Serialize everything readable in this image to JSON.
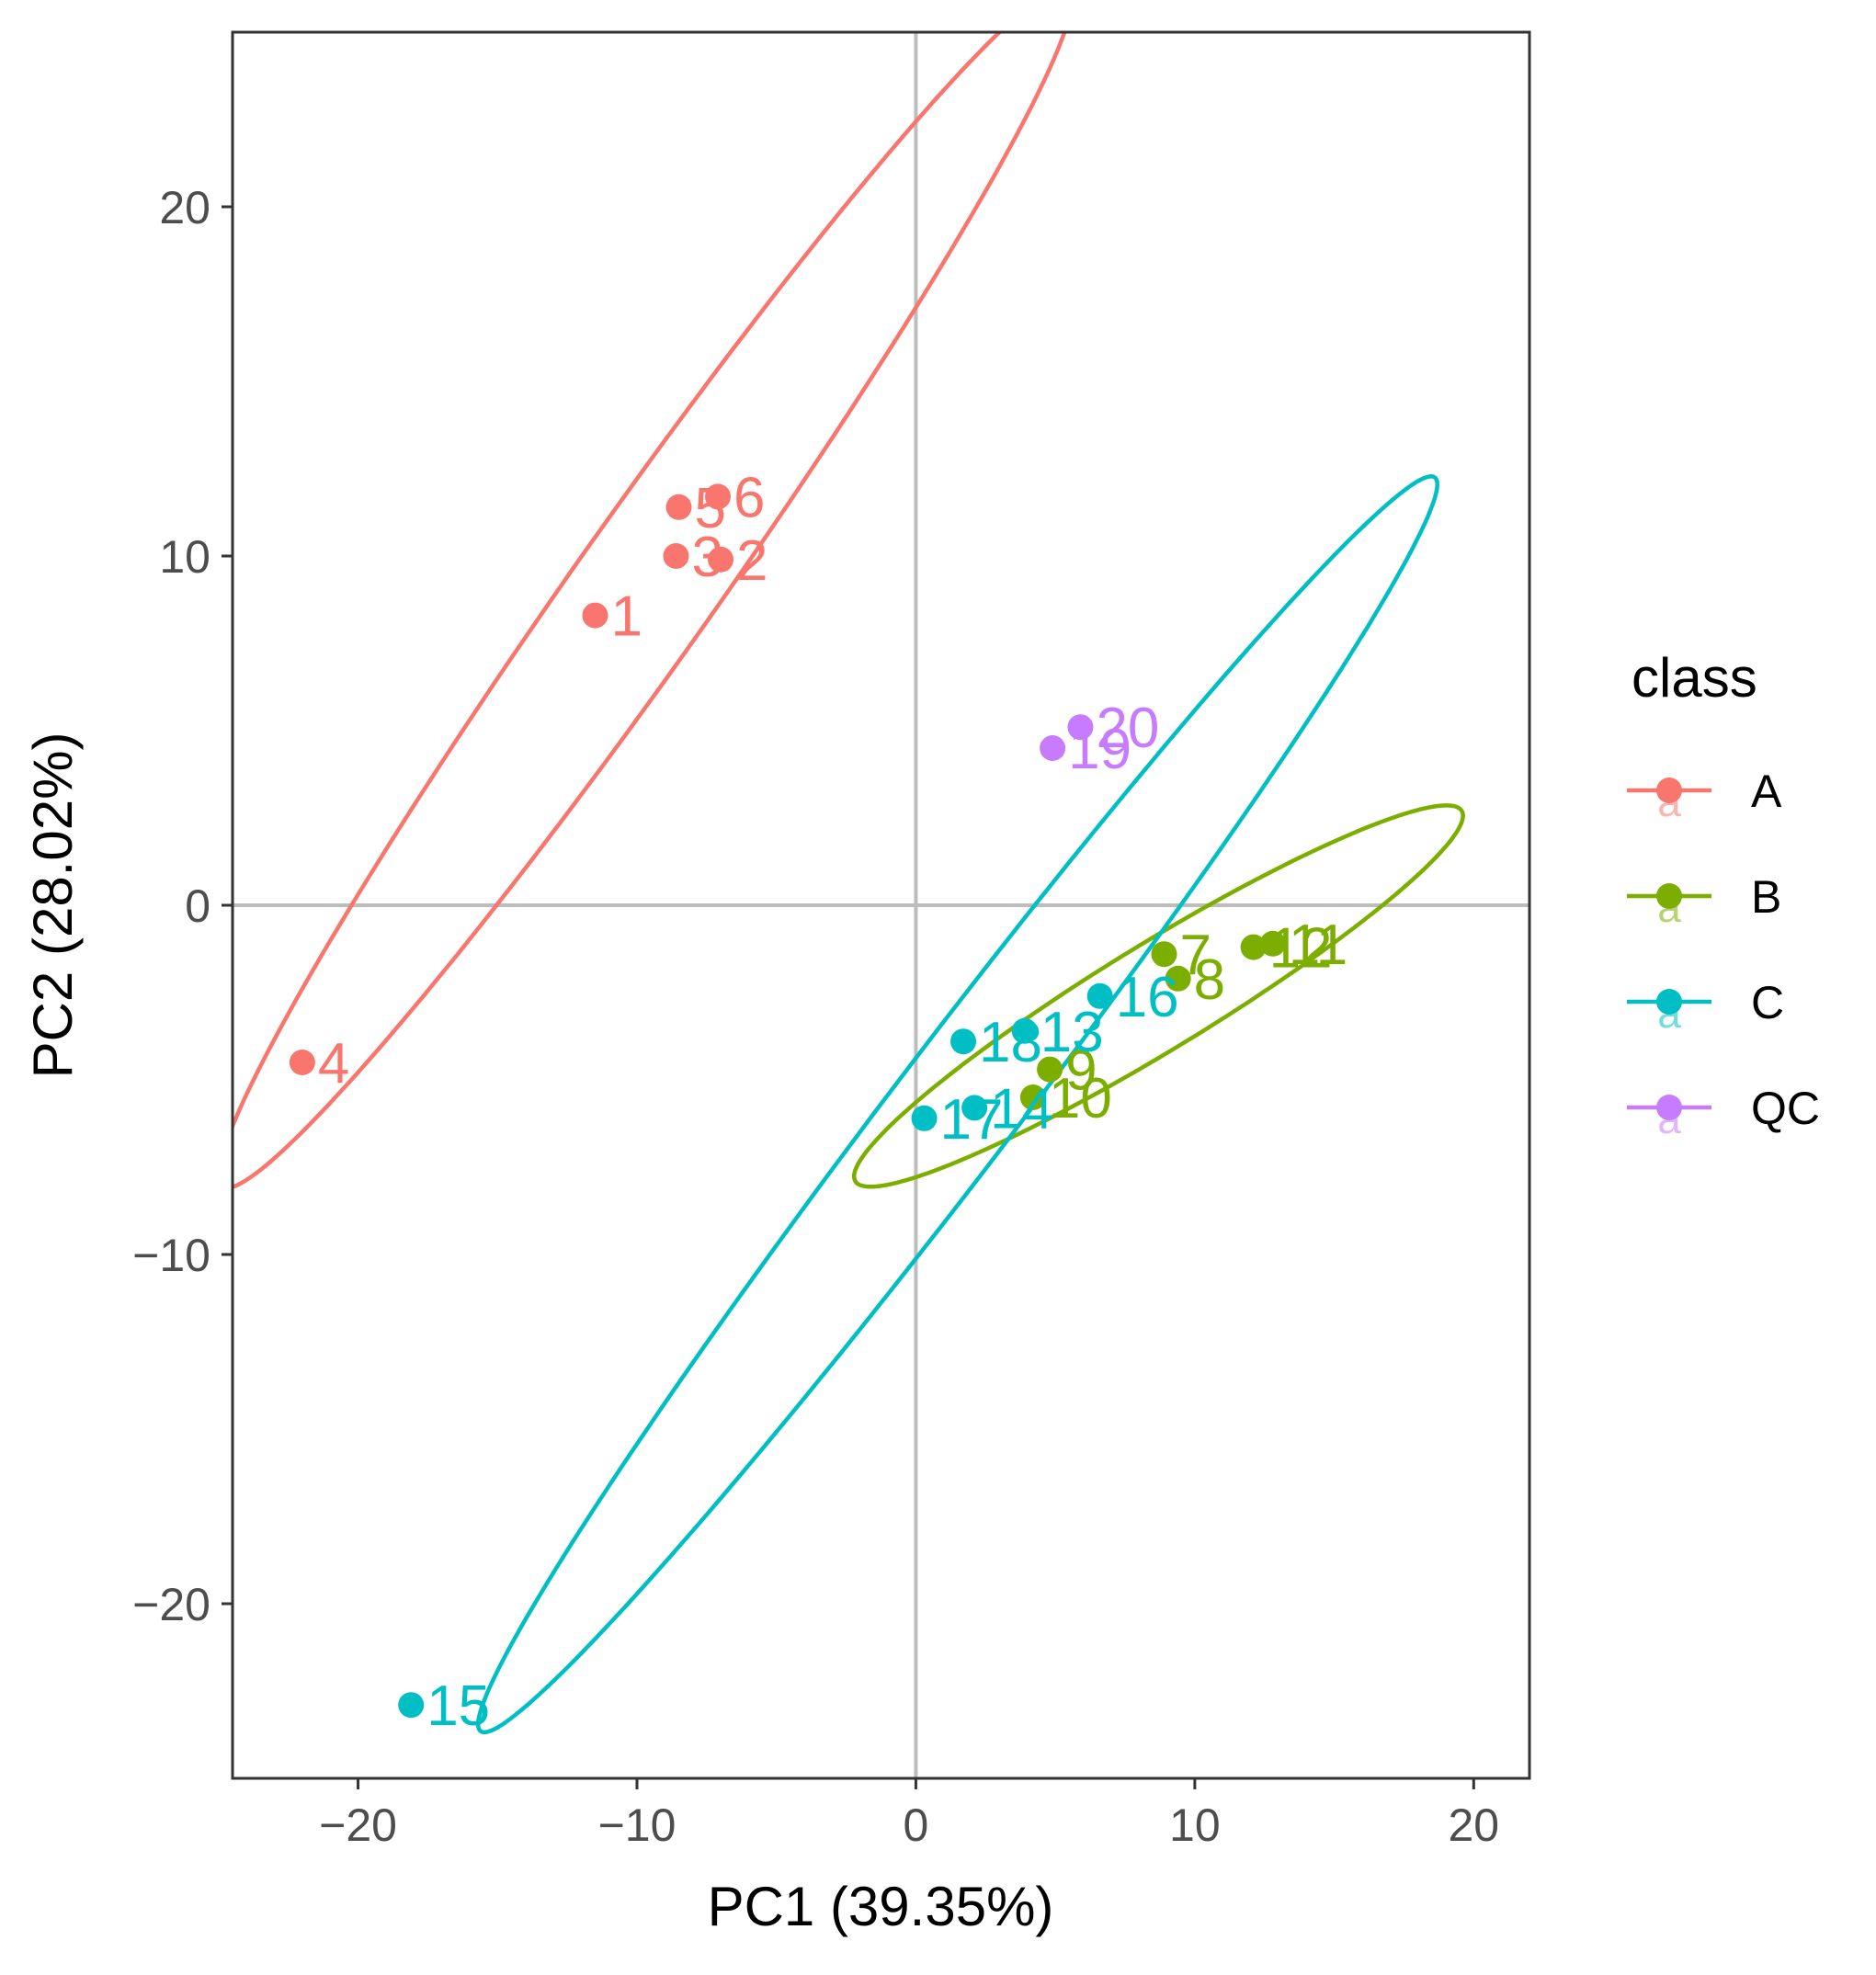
{
  "chart_data": {
    "type": "scatter",
    "title": "",
    "xlabel": "PC1 (39.35%)",
    "ylabel": "PC2 (28.02%)",
    "xlim": [
      -24.5,
      22
    ],
    "ylim": [
      -25,
      25
    ],
    "xticks": [
      -20,
      -10,
      0,
      10,
      20
    ],
    "yticks": [
      -20,
      -10,
      0,
      10,
      20
    ],
    "tick_labels_x": [
      "−20",
      "−10",
      "0",
      "10",
      "20"
    ],
    "tick_labels_y": [
      "−20",
      "−10",
      "0",
      "10",
      "20"
    ],
    "grid": false,
    "reference_lines": {
      "x": 0,
      "y": 0
    },
    "legend": {
      "title": "class",
      "placement": "right"
    },
    "series": [
      {
        "name": "A",
        "color": "#F8766D",
        "points": [
          {
            "label": "1",
            "x": -11.5,
            "y": 8.3
          },
          {
            "label": "2",
            "x": -7.0,
            "y": 9.9
          },
          {
            "label": "3",
            "x": -8.6,
            "y": 10.0
          },
          {
            "label": "4",
            "x": -22.0,
            "y": -4.5
          },
          {
            "label": "5",
            "x": -8.5,
            "y": 11.4
          },
          {
            "label": "6",
            "x": -7.1,
            "y": 11.7
          }
        ],
        "ellipse": {
          "center": [
            -9.7,
            9.1
          ],
          "a": 22.9,
          "b": 2.3,
          "angle_deg": 48.4
        }
      },
      {
        "name": "B",
        "color": "#7CAE00",
        "points": [
          {
            "label": "7",
            "x": 8.9,
            "y": -1.4
          },
          {
            "label": "8",
            "x": 9.4,
            "y": -2.1
          },
          {
            "label": "9",
            "x": 4.8,
            "y": -4.7
          },
          {
            "label": "10",
            "x": 4.2,
            "y": -5.5
          },
          {
            "label": "11",
            "x": 12.8,
            "y": -1.1
          },
          {
            "label": "12",
            "x": 12.1,
            "y": -1.2
          }
        ],
        "ellipse": {
          "center": [
            8.7,
            -2.6
          ],
          "a": 12.1,
          "b": 1.6,
          "angle_deg": 25.8
        }
      },
      {
        "name": "C",
        "color": "#00BFC4",
        "points": [
          {
            "label": "13",
            "x": 3.9,
            "y": -3.6
          },
          {
            "label": "14",
            "x": 2.1,
            "y": -5.8
          },
          {
            "label": "15",
            "x": -18.1,
            "y": -22.9
          },
          {
            "label": "16",
            "x": 6.6,
            "y": -2.6
          },
          {
            "label": "17",
            "x": 0.3,
            "y": -6.1
          },
          {
            "label": "18",
            "x": 1.7,
            "y": -3.9
          }
        ],
        "ellipse": {
          "center": [
            1.5,
            -5.7
          ],
          "a": 24.8,
          "b": 2.0,
          "angle_deg": 46.3
        }
      },
      {
        "name": "QC",
        "color": "#C77CFF",
        "points": [
          {
            "label": "19",
            "x": 4.9,
            "y": 4.5
          },
          {
            "label": "20",
            "x": 5.9,
            "y": 5.1
          }
        ]
      }
    ]
  }
}
